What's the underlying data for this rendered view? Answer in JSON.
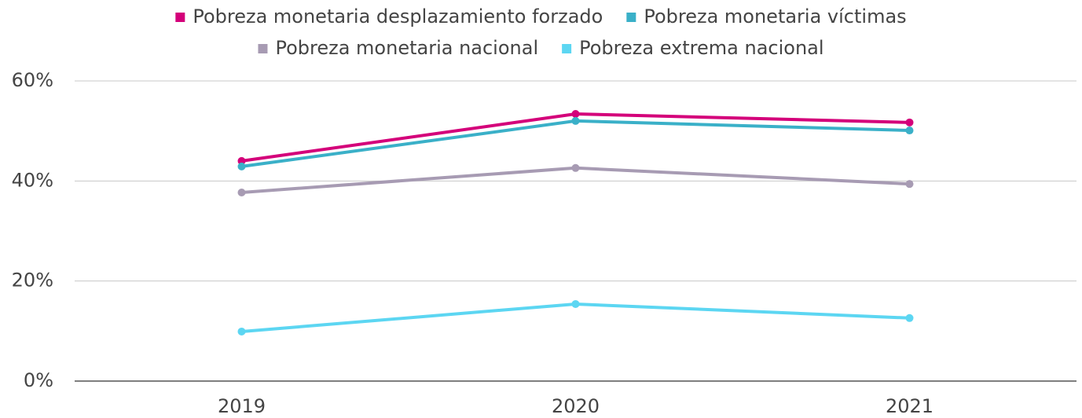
{
  "chart_data": {
    "type": "line",
    "categories": [
      "2019",
      "2020",
      "2021"
    ],
    "series": [
      {
        "name": "Pobreza monetaria desplazamiento forzado",
        "color": "#d4007a",
        "values": [
          44.0,
          53.4,
          51.7
        ]
      },
      {
        "name": "Pobreza monetaria víctimas",
        "color": "#3ab0c8",
        "values": [
          42.9,
          52.0,
          50.1
        ]
      },
      {
        "name": "Pobreza monetaria nacional",
        "color": "#a79bb3",
        "values": [
          37.7,
          42.6,
          39.4
        ]
      },
      {
        "name": "Pobreza extrema nacional",
        "color": "#5cd6f2",
        "values": [
          9.9,
          15.4,
          12.6
        ]
      }
    ],
    "ylim": [
      0,
      60
    ],
    "yticks": [
      {
        "value": 0,
        "label": "0%"
      },
      {
        "value": 20,
        "label": "20%"
      },
      {
        "value": 40,
        "label": "40%"
      },
      {
        "value": 60,
        "label": "60%"
      }
    ],
    "grid": true,
    "legend": "top"
  }
}
